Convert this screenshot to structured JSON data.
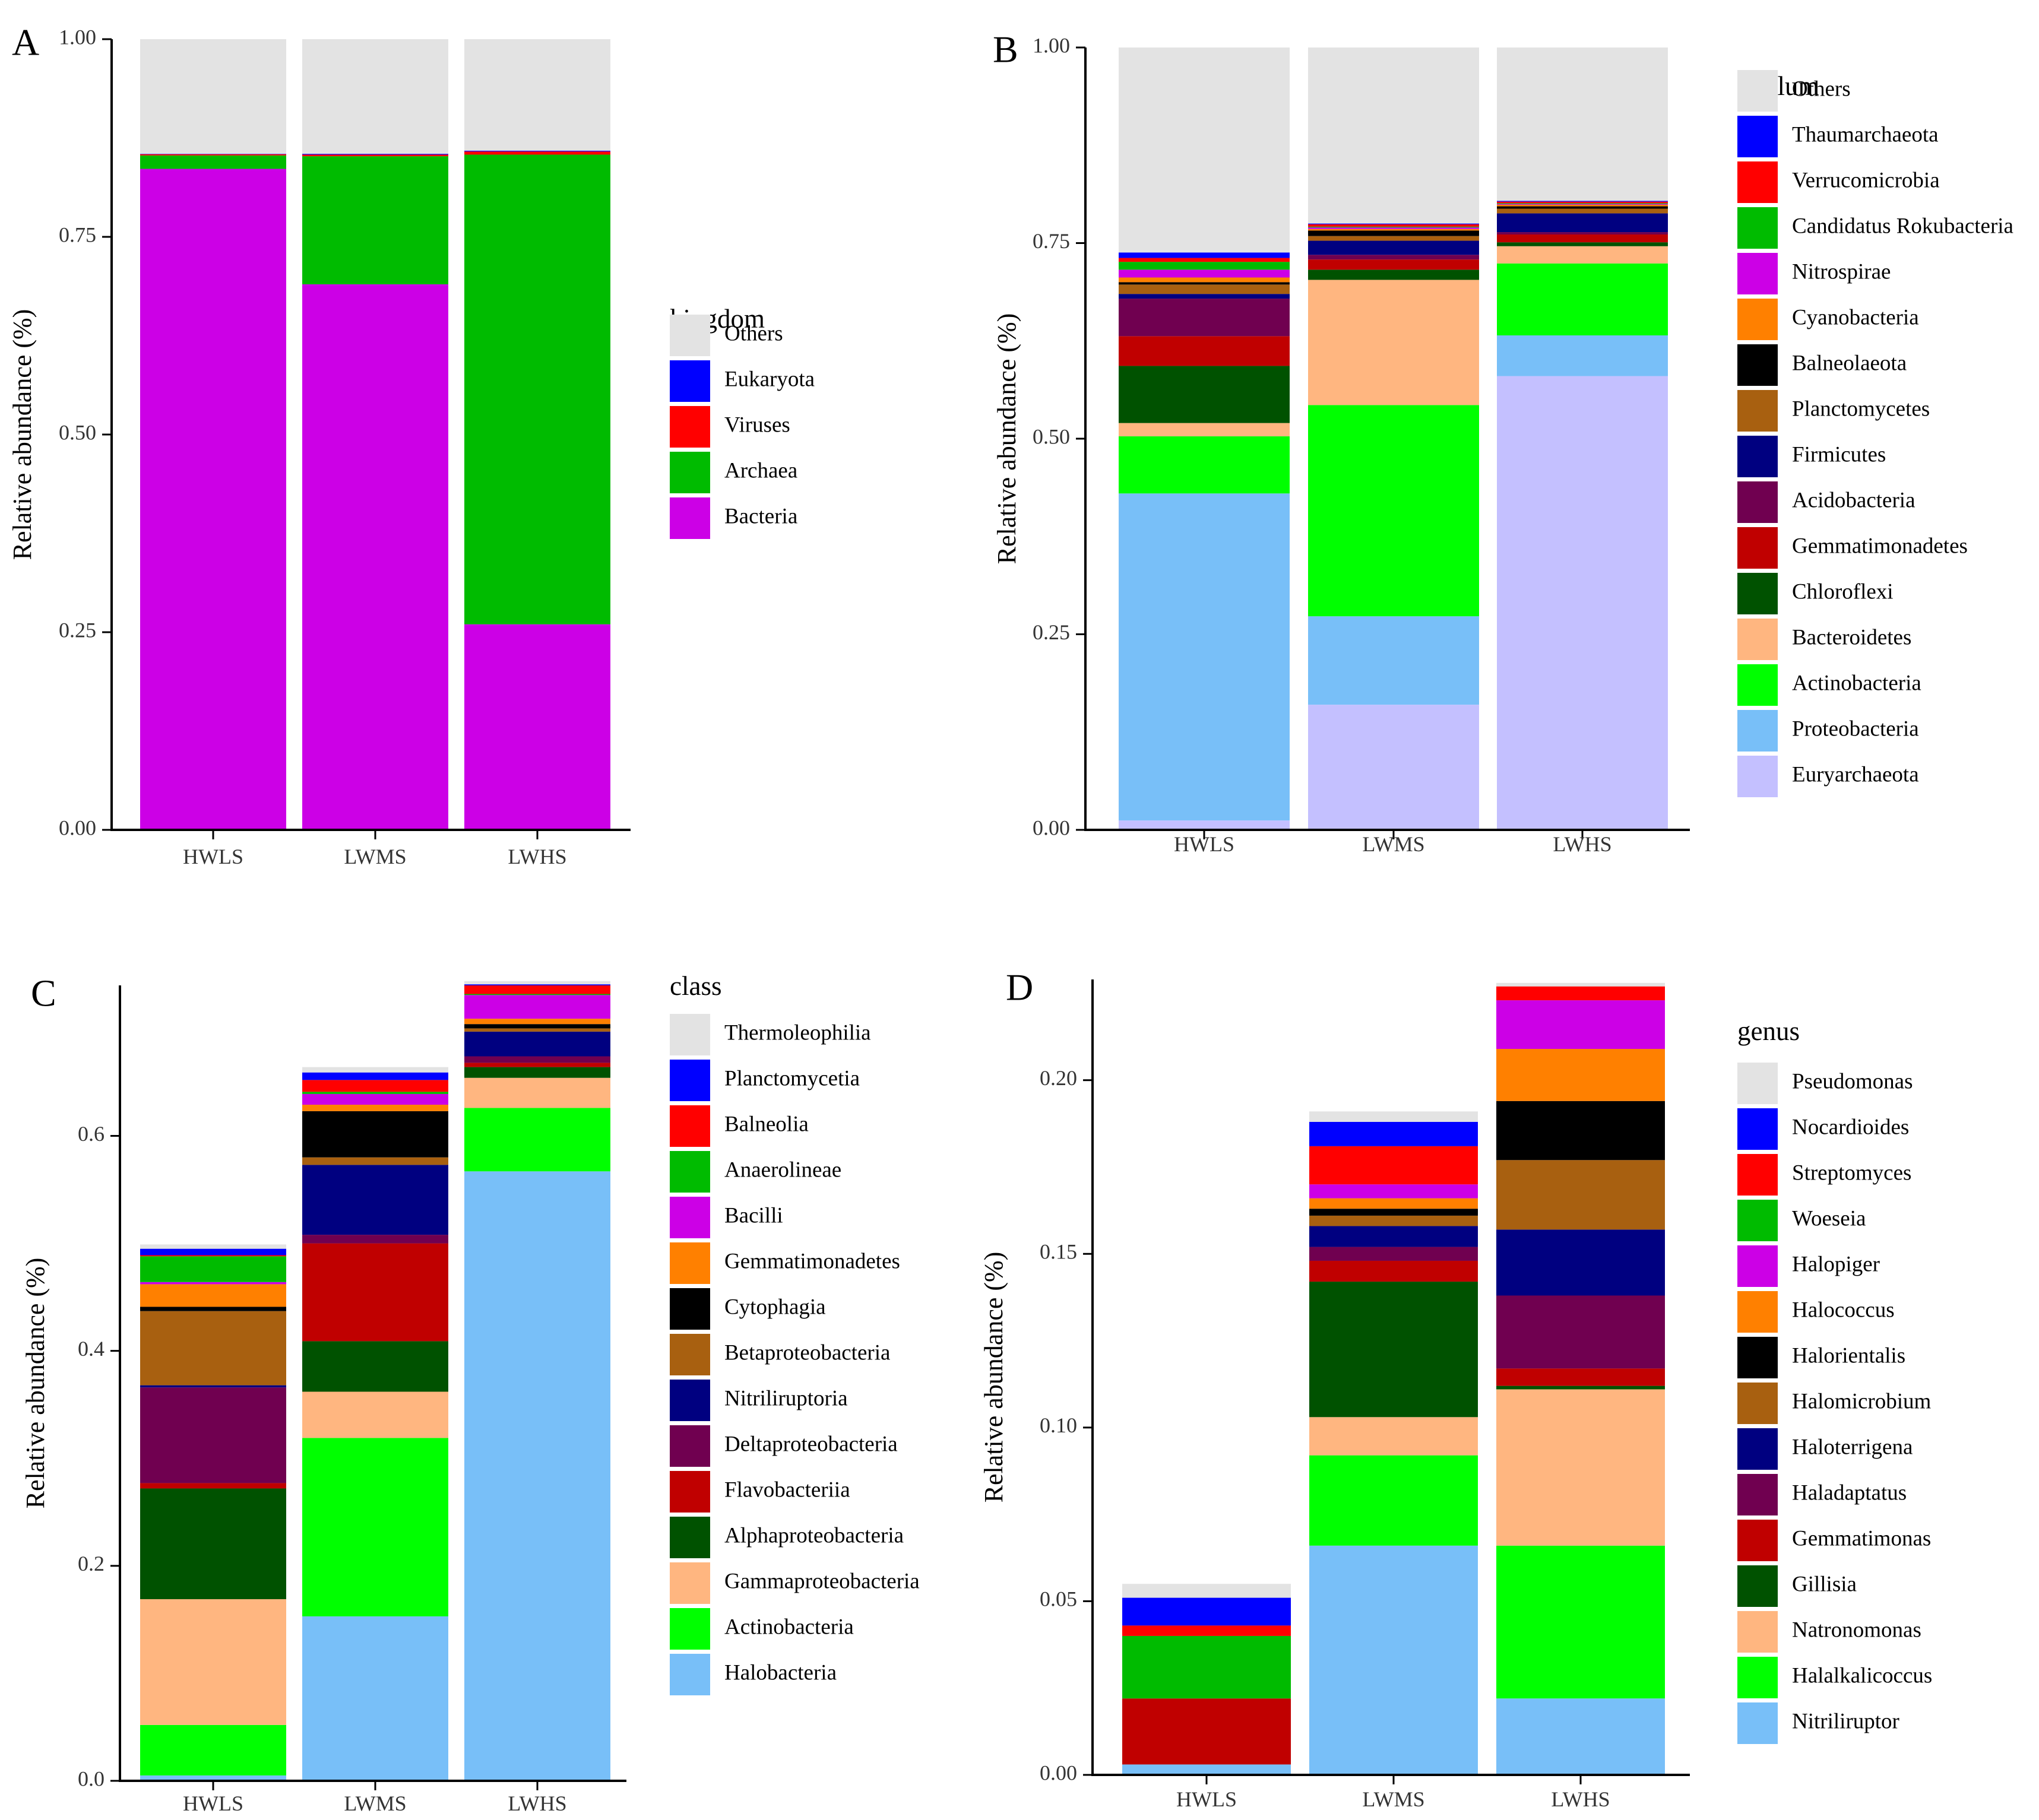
{
  "chart_data": [
    {
      "type": "bar",
      "panel": "A",
      "ylabel": "Relative abundance (%)",
      "ylim": [
        0,
        1
      ],
      "yticks": [
        0,
        0.25,
        0.5,
        0.75,
        1.0
      ],
      "ytick_labels": [
        "0.00",
        "0.25",
        "0.50",
        "0.75",
        "1.00"
      ],
      "categories": [
        "HWLS",
        "LWMS",
        "LWHS"
      ],
      "legend_title": "kingdom",
      "legend": [
        "Others",
        "Eukaryota",
        "Viruses",
        "Archaea",
        "Bacteria"
      ],
      "series": [
        {
          "name": "Bacteria",
          "color": "#cc00e6",
          "values": [
            0.836,
            0.69,
            0.26
          ]
        },
        {
          "name": "Archaea",
          "color": "#00bb00",
          "values": [
            0.017,
            0.162,
            0.594
          ]
        },
        {
          "name": "Viruses",
          "color": "#ff0000",
          "values": [
            0.0015,
            0.002,
            0.004
          ]
        },
        {
          "name": "Eukaryota",
          "color": "#0000ff",
          "values": [
            0.0005,
            0.001,
            0.001
          ]
        },
        {
          "name": "Others",
          "color": "#e3e3e3",
          "values": [
            0.145,
            0.145,
            0.141
          ]
        }
      ]
    },
    {
      "type": "bar",
      "panel": "B",
      "ylabel": "Relative abundance (%)",
      "ylim": [
        0,
        1
      ],
      "yticks": [
        0,
        0.25,
        0.5,
        0.75,
        1.0
      ],
      "ytick_labels": [
        "0.00",
        "0.25",
        "0.50",
        "0.75",
        "1.00"
      ],
      "categories": [
        "HWLS",
        "LWMS",
        "LWHS"
      ],
      "legend_title": "phylum",
      "legend": [
        "Others",
        "Thaumarchaeota",
        "Verrucomicrobia",
        "Candidatus Rokubacteria",
        "Nitrospirae",
        "Cyanobacteria",
        "Balneolaeota",
        "Planctomycetes",
        "Firmicutes",
        "Acidobacteria",
        "Gemmatimonadetes",
        "Chloroflexi",
        "Bacteroidetes",
        "Actinobacteria",
        "Proteobacteria",
        "Euryarchaeota"
      ],
      "series": [
        {
          "name": "Euryarchaeota",
          "color": "#c4c0ff",
          "values": [
            0.012,
            0.16,
            0.58
          ]
        },
        {
          "name": "Proteobacteria",
          "color": "#78bff8",
          "values": [
            0.418,
            0.113,
            0.052
          ]
        },
        {
          "name": "Actinobacteria",
          "color": "#00ff00",
          "values": [
            0.073,
            0.27,
            0.092
          ]
        },
        {
          "name": "Bacteroidetes",
          "color": "#ffb680",
          "values": [
            0.017,
            0.16,
            0.022
          ]
        },
        {
          "name": "Chloroflexi",
          "color": "#005200",
          "values": [
            0.073,
            0.013,
            0.005
          ]
        },
        {
          "name": "Gemmatimonadetes",
          "color": "#c00000",
          "values": [
            0.038,
            0.013,
            0.01
          ]
        },
        {
          "name": "Acidobacteria",
          "color": "#700050",
          "values": [
            0.048,
            0.006,
            0.003
          ]
        },
        {
          "name": "Firmicutes",
          "color": "#000080",
          "values": [
            0.006,
            0.018,
            0.024
          ]
        },
        {
          "name": "Planctomycetes",
          "color": "#a86010",
          "values": [
            0.012,
            0.006,
            0.006
          ]
        },
        {
          "name": "Balneolaeota",
          "color": "#000000",
          "values": [
            0.003,
            0.007,
            0.003
          ]
        },
        {
          "name": "Cyanobacteria",
          "color": "#ff8000",
          "values": [
            0.006,
            0.002,
            0.002
          ]
        },
        {
          "name": "Nitrospirae",
          "color": "#cc00e6",
          "values": [
            0.01,
            0.002,
            0.001
          ]
        },
        {
          "name": "Candidatus Rokubacteria",
          "color": "#00bb00",
          "values": [
            0.01,
            0.001,
            0.001
          ]
        },
        {
          "name": "Verrucomicrobia",
          "color": "#ff0000",
          "values": [
            0.005,
            0.003,
            0.002
          ]
        },
        {
          "name": "Thaumarchaeota",
          "color": "#0000ff",
          "values": [
            0.007,
            0.001,
            0.001
          ]
        },
        {
          "name": "Others",
          "color": "#e3e3e3",
          "values": [
            0.262,
            0.225,
            0.196
          ]
        }
      ]
    },
    {
      "type": "bar",
      "panel": "C",
      "ylabel": "Relative abundance (%)",
      "ylim": [
        0,
        0.74
      ],
      "yticks": [
        0,
        0.2,
        0.4,
        0.6
      ],
      "ytick_labels": [
        "0.0",
        "0.2",
        "0.4",
        "0.6"
      ],
      "categories": [
        "HWLS",
        "LWMS",
        "LWHS"
      ],
      "legend_title": "class",
      "legend": [
        "Thermoleophilia",
        "Planctomycetia",
        "Balneolia",
        "Anaerolineae",
        "Bacilli",
        "Gemmatimonadetes",
        "Cytophagia",
        "Betaproteobacteria",
        "Nitriliruptoria",
        "Deltaproteobacteria",
        "Flavobacteriia",
        "Alphaproteobacteria",
        "Gammaproteobacteria",
        "Actinobacteria",
        "Halobacteria"
      ],
      "series": [
        {
          "name": "Halobacteria",
          "color": "#78bff8",
          "values": [
            0.005,
            0.153,
            0.567
          ]
        },
        {
          "name": "Actinobacteria",
          "color": "#00ff00",
          "values": [
            0.047,
            0.166,
            0.059
          ]
        },
        {
          "name": "Gammaproteobacteria",
          "color": "#ffb680",
          "values": [
            0.117,
            0.043,
            0.028
          ]
        },
        {
          "name": "Alphaproteobacteria",
          "color": "#005200",
          "values": [
            0.103,
            0.047,
            0.01
          ]
        },
        {
          "name": "Flavobacteriia",
          "color": "#c00000",
          "values": [
            0.005,
            0.091,
            0.004
          ]
        },
        {
          "name": "Deltaproteobacteria",
          "color": "#700050",
          "values": [
            0.089,
            0.008,
            0.006
          ]
        },
        {
          "name": "Nitriliruptoria",
          "color": "#000080",
          "values": [
            0.002,
            0.065,
            0.023
          ]
        },
        {
          "name": "Betaproteobacteria",
          "color": "#a86010",
          "values": [
            0.069,
            0.007,
            0.003
          ]
        },
        {
          "name": "Cytophagia",
          "color": "#000000",
          "values": [
            0.004,
            0.043,
            0.004
          ]
        },
        {
          "name": "Gemmatimonadetes",
          "color": "#ff8000",
          "values": [
            0.021,
            0.006,
            0.005
          ]
        },
        {
          "name": "Bacilli",
          "color": "#cc00e6",
          "values": [
            0.002,
            0.01,
            0.022
          ]
        },
        {
          "name": "Anaerolineae",
          "color": "#00bb00",
          "values": [
            0.024,
            0.002,
            0.001
          ]
        },
        {
          "name": "Balneolia",
          "color": "#ff0000",
          "values": [
            0.001,
            0.011,
            0.008
          ]
        },
        {
          "name": "Planctomycetia",
          "color": "#0000ff",
          "values": [
            0.006,
            0.007,
            0.001
          ]
        },
        {
          "name": "Thermoleophilia",
          "color": "#e3e3e3",
          "values": [
            0.004,
            0.005,
            0.003
          ]
        }
      ]
    },
    {
      "type": "bar",
      "panel": "D",
      "ylabel": "Relative abundance (%)",
      "ylim": [
        0,
        0.229
      ],
      "yticks": [
        0,
        0.05,
        0.1,
        0.15,
        0.2
      ],
      "ytick_labels": [
        "0.00",
        "0.05",
        "0.10",
        "0.15",
        "0.20"
      ],
      "categories": [
        "HWLS",
        "LWMS",
        "LWHS"
      ],
      "legend_title": "genus",
      "legend": [
        "Pseudomonas",
        "Nocardioides",
        "Streptomyces",
        "Woeseia",
        "Halopiger",
        "Halococcus",
        "Halorientalis",
        "Halomicrobium",
        "Haloterrigena",
        "Haladaptatus",
        "Gemmatimonas",
        "Gillisia",
        "Natronomonas",
        "Halalkalicoccus",
        "Nitriliruptor"
      ],
      "series": [
        {
          "name": "Nitriliruptor",
          "color": "#78bff8",
          "values": [
            0.003,
            0.066,
            0.022
          ]
        },
        {
          "name": "Halalkalicoccus",
          "color": "#00ff00",
          "values": [
            0.0,
            0.026,
            0.044
          ]
        },
        {
          "name": "Natronomonas",
          "color": "#ffb680",
          "values": [
            0.0,
            0.011,
            0.045
          ]
        },
        {
          "name": "Gillisia",
          "color": "#005200",
          "values": [
            0.0,
            0.039,
            0.001
          ]
        },
        {
          "name": "Gemmatimonas",
          "color": "#c00000",
          "values": [
            0.019,
            0.006,
            0.005
          ]
        },
        {
          "name": "Haladaptatus",
          "color": "#700050",
          "values": [
            0.0,
            0.004,
            0.021
          ]
        },
        {
          "name": "Haloterrigena",
          "color": "#000080",
          "values": [
            0.0,
            0.006,
            0.019
          ]
        },
        {
          "name": "Halomicrobium",
          "color": "#a86010",
          "values": [
            0.0,
            0.003,
            0.02
          ]
        },
        {
          "name": "Halorientalis",
          "color": "#000000",
          "values": [
            0.0,
            0.002,
            0.017
          ]
        },
        {
          "name": "Halococcus",
          "color": "#ff8000",
          "values": [
            0.0,
            0.003,
            0.015
          ]
        },
        {
          "name": "Halopiger",
          "color": "#cc00e6",
          "values": [
            0.0,
            0.004,
            0.014
          ]
        },
        {
          "name": "Woeseia",
          "color": "#00bb00",
          "values": [
            0.018,
            0.0,
            0.0
          ]
        },
        {
          "name": "Streptomyces",
          "color": "#ff0000",
          "values": [
            0.003,
            0.011,
            0.004
          ]
        },
        {
          "name": "Nocardioides",
          "color": "#0000ff",
          "values": [
            0.008,
            0.007,
            0.0
          ]
        },
        {
          "name": "Pseudomonas",
          "color": "#e3e3e3",
          "values": [
            0.004,
            0.003,
            0.001
          ]
        }
      ]
    }
  ],
  "panel_labels": [
    "A",
    "B",
    "C",
    "D"
  ]
}
